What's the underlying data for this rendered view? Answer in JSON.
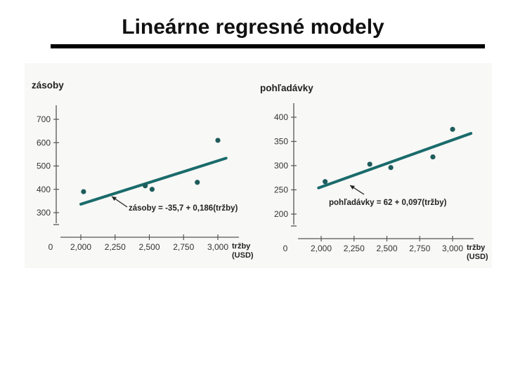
{
  "slide": {
    "title": "Lineárne regresné modely"
  },
  "chart_data": [
    {
      "type": "scatter",
      "title": "",
      "ylabel": "zásoby",
      "xlabel": "tržby",
      "xlabel_unit": "(USD)",
      "x_origin_label": "0",
      "x_ticks": [
        2000,
        2250,
        2500,
        2750,
        3000
      ],
      "x_tick_labels": [
        "2,000",
        "2,250",
        "2,500",
        "2,750",
        "3,000"
      ],
      "y_ticks": [
        300,
        400,
        500,
        600,
        700
      ],
      "y_tick_labels": [
        "300",
        "400",
        "500",
        "600",
        "700"
      ],
      "xlim": [
        1950,
        3050
      ],
      "ylim": [
        200,
        750
      ],
      "points": [
        {
          "x": 2020,
          "y": 390
        },
        {
          "x": 2470,
          "y": 415
        },
        {
          "x": 2520,
          "y": 400
        },
        {
          "x": 2850,
          "y": 430
        },
        {
          "x": 3000,
          "y": 610
        }
      ],
      "regression": {
        "intercept": -35.7,
        "slope": 0.186,
        "x_from": 2000,
        "x_to": 3060
      },
      "equation": "zásoby = -35,7 + 0,186(tržby)",
      "line_color": "#1a6b6b",
      "point_color": "#1f5c5c",
      "grid": false
    },
    {
      "type": "scatter",
      "title": "",
      "ylabel": "pohľadávky",
      "xlabel": "tržby",
      "xlabel_unit": "(USD)",
      "x_origin_label": "0",
      "x_ticks": [
        2000,
        2250,
        2500,
        2750,
        3000
      ],
      "x_tick_labels": [
        "2,000",
        "2,250",
        "2,500",
        "2,750",
        "3,000"
      ],
      "y_ticks": [
        200,
        250,
        300,
        350,
        400
      ],
      "y_tick_labels": [
        "200",
        "250",
        "300",
        "350",
        "400"
      ],
      "xlim": [
        1950,
        3050
      ],
      "ylim": [
        165,
        415
      ],
      "points": [
        {
          "x": 2030,
          "y": 267
        },
        {
          "x": 2370,
          "y": 303
        },
        {
          "x": 2530,
          "y": 296
        },
        {
          "x": 2850,
          "y": 318
        },
        {
          "x": 3000,
          "y": 375
        }
      ],
      "regression": {
        "intercept": 62,
        "slope": 0.097,
        "x_from": 1980,
        "x_to": 3140
      },
      "equation": "pohľadávky = 62 + 0,097(tržby)",
      "line_color": "#1a6b6b",
      "point_color": "#1f5c5c",
      "grid": false
    }
  ]
}
